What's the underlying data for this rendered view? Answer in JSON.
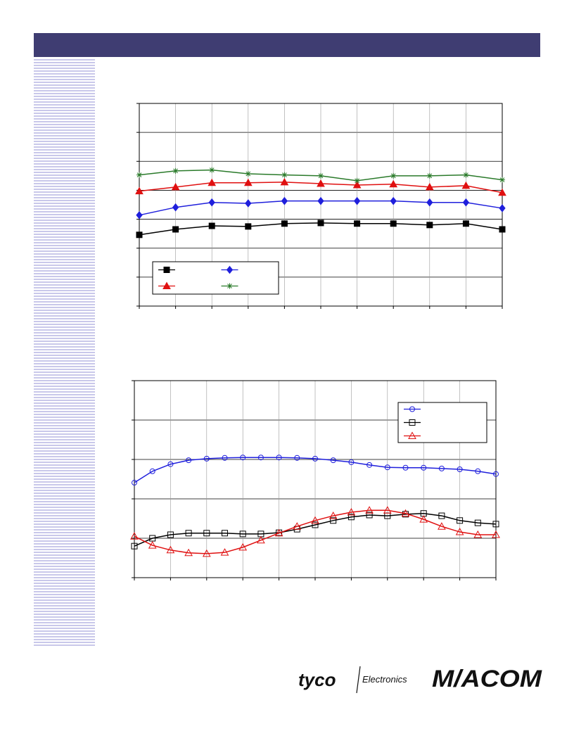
{
  "chart_data": [
    {
      "type": "line",
      "x": [
        0,
        1,
        2,
        3,
        4,
        5,
        6,
        7,
        8,
        9,
        10
      ],
      "xlim": [
        0,
        10
      ],
      "xticks": [
        0,
        1,
        2,
        3,
        4,
        5,
        6,
        7,
        8,
        9,
        10
      ],
      "ylim": [
        0,
        7
      ],
      "yticks": [
        0,
        1,
        2,
        3,
        4,
        5,
        6,
        7
      ],
      "grid": true,
      "marker_fill": true,
      "series": [
        {
          "color": "#000000",
          "marker": "square",
          "values": [
            2.46,
            2.65,
            2.77,
            2.75,
            2.85,
            2.87,
            2.85,
            2.85,
            2.8,
            2.85,
            2.65
          ]
        },
        {
          "color": "#1f1fdc",
          "marker": "diamond",
          "values": [
            3.14,
            3.41,
            3.58,
            3.55,
            3.63,
            3.63,
            3.63,
            3.63,
            3.58,
            3.58,
            3.38
          ]
        },
        {
          "color": "#e01010",
          "marker": "triangle",
          "values": [
            3.97,
            4.11,
            4.26,
            4.26,
            4.28,
            4.23,
            4.18,
            4.21,
            4.11,
            4.16,
            3.92
          ]
        },
        {
          "color": "#2a7a2a",
          "marker": "star",
          "values": [
            4.53,
            4.67,
            4.7,
            4.57,
            4.53,
            4.5,
            4.33,
            4.5,
            4.5,
            4.53,
            4.36
          ]
        }
      ]
    },
    {
      "type": "line",
      "x": [
        0,
        0.5,
        1,
        1.5,
        2,
        2.5,
        3,
        3.5,
        4,
        4.5,
        5,
        5.5,
        6,
        6.5,
        7,
        7.5,
        8,
        8.5,
        9,
        9.5,
        10
      ],
      "xlim": [
        0,
        10
      ],
      "xticks": [
        0,
        1,
        2,
        3,
        4,
        5,
        6,
        7,
        8,
        9,
        10
      ],
      "ylim": [
        0,
        5
      ],
      "yticks": [
        0,
        1,
        2,
        3,
        4,
        5
      ],
      "grid": true,
      "marker_fill": false,
      "series": [
        {
          "color": "#1f1fdc",
          "marker": "circle",
          "values": [
            2.41,
            2.7,
            2.88,
            2.98,
            3.02,
            3.04,
            3.05,
            3.05,
            3.05,
            3.04,
            3.02,
            2.98,
            2.93,
            2.86,
            2.8,
            2.79,
            2.79,
            2.77,
            2.75,
            2.7,
            2.63
          ]
        },
        {
          "color": "#000000",
          "marker": "square",
          "values": [
            0.8,
            1.0,
            1.09,
            1.13,
            1.13,
            1.13,
            1.11,
            1.11,
            1.14,
            1.23,
            1.34,
            1.45,
            1.54,
            1.59,
            1.57,
            1.61,
            1.63,
            1.57,
            1.45,
            1.39,
            1.36
          ]
        },
        {
          "color": "#e01010",
          "marker": "triangle",
          "values": [
            1.05,
            0.82,
            0.7,
            0.63,
            0.61,
            0.64,
            0.77,
            0.95,
            1.13,
            1.3,
            1.45,
            1.57,
            1.66,
            1.71,
            1.71,
            1.63,
            1.48,
            1.3,
            1.16,
            1.09,
            1.09
          ]
        }
      ]
    }
  ],
  "logos": {
    "tyco": "tyco",
    "electronics": "Electronics",
    "macom": "M/ACOM"
  }
}
